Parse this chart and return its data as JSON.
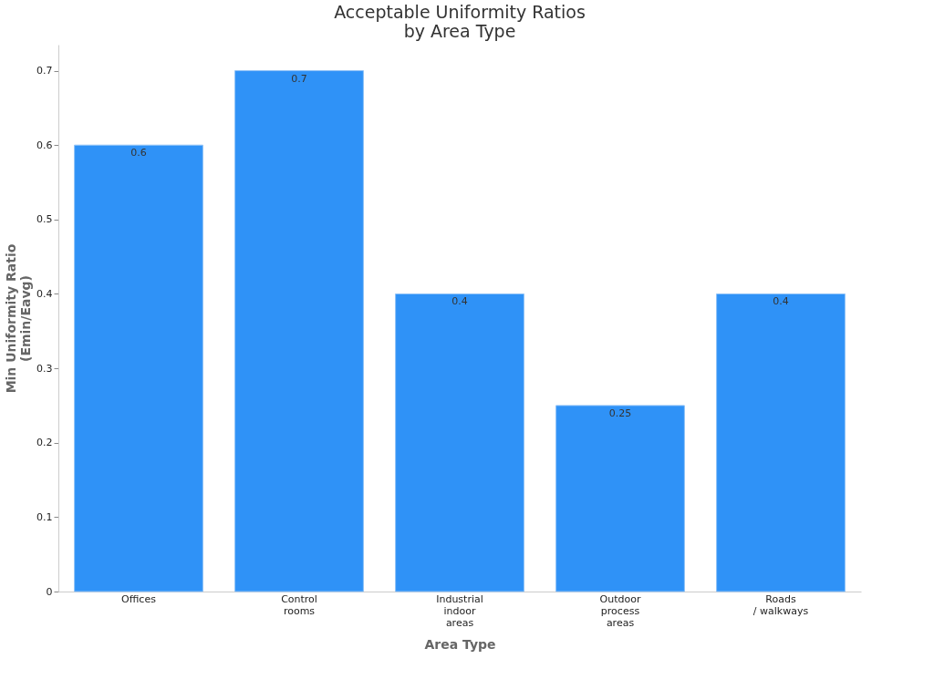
{
  "chart_data": {
    "type": "bar",
    "title": "Acceptable Uniformity Ratios\nby Area Type",
    "xlabel": "Area Type",
    "ylabel": "Min Uniformity Ratio\n(Emin/Eavg)",
    "categories": [
      "Offices",
      "Control\nrooms",
      "Industrial\nindoor\nareas",
      "Outdoor\nprocess\nareas",
      "Roads\n/ walkways"
    ],
    "values": [
      0.6,
      0.7,
      0.4,
      0.25,
      0.4
    ],
    "color": "#2f92f7",
    "ylim": [
      0,
      0.735
    ],
    "yticks": [
      0,
      0.1,
      0.2,
      0.3,
      0.4,
      0.5,
      0.6,
      0.7
    ],
    "grid": false,
    "data_labels": true
  }
}
